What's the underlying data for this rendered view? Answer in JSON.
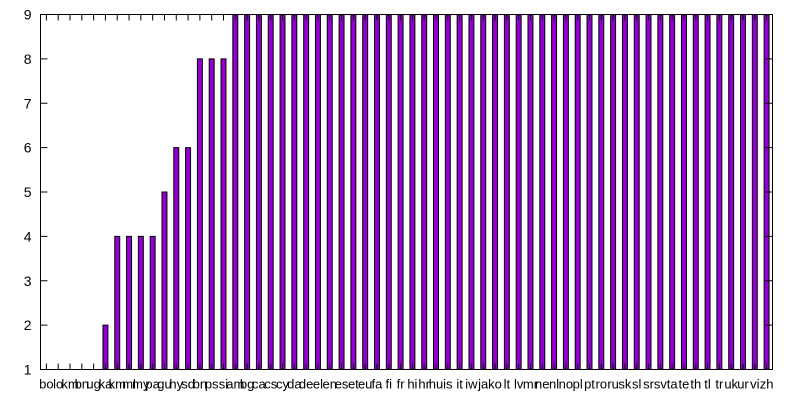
{
  "chart_data": {
    "type": "bar",
    "title": "",
    "xlabel": "",
    "ylabel": "",
    "ylim": [
      1,
      9
    ],
    "yticks": [
      1,
      2,
      3,
      4,
      5,
      6,
      7,
      8,
      9
    ],
    "grid": false,
    "legend": "none",
    "bar_color": "#9400d3",
    "bar_outline_color": "#000000",
    "categories": [
      "bo",
      "lo",
      "km",
      "bn",
      "ug",
      "ka",
      "km",
      "ml",
      "my",
      "pa",
      "gu",
      "hy",
      "sd",
      "bn",
      "ps",
      "si",
      "am",
      "bg",
      "ca",
      "cs",
      "cy",
      "da",
      "de",
      "el",
      "en",
      "es",
      "et",
      "eu",
      "fa",
      "fi",
      "fr",
      "hi",
      "hr",
      "hu",
      "is",
      "it",
      "iw",
      "ja",
      "ko",
      "lt",
      "lv",
      "mr",
      "ne",
      "nl",
      "no",
      "pl",
      "pt",
      "ro",
      "ru",
      "sk",
      "sl",
      "sr",
      "sv",
      "ta",
      "te",
      "th",
      "tl",
      "tr",
      "uk",
      "ur",
      "vi",
      "zh"
    ],
    "values": [
      1,
      1,
      1,
      1,
      1,
      2,
      4,
      4,
      4,
      4,
      5,
      6,
      6,
      8,
      8,
      8,
      9,
      9,
      9,
      9,
      9,
      9,
      9,
      9,
      9,
      9,
      9,
      9,
      9,
      9,
      9,
      9,
      9,
      9,
      9,
      9,
      9,
      9,
      9,
      9,
      9,
      9,
      9,
      9,
      9,
      9,
      9,
      9,
      9,
      9,
      9,
      9,
      9,
      9,
      9,
      9,
      9,
      9,
      9,
      9,
      9,
      9
    ]
  }
}
